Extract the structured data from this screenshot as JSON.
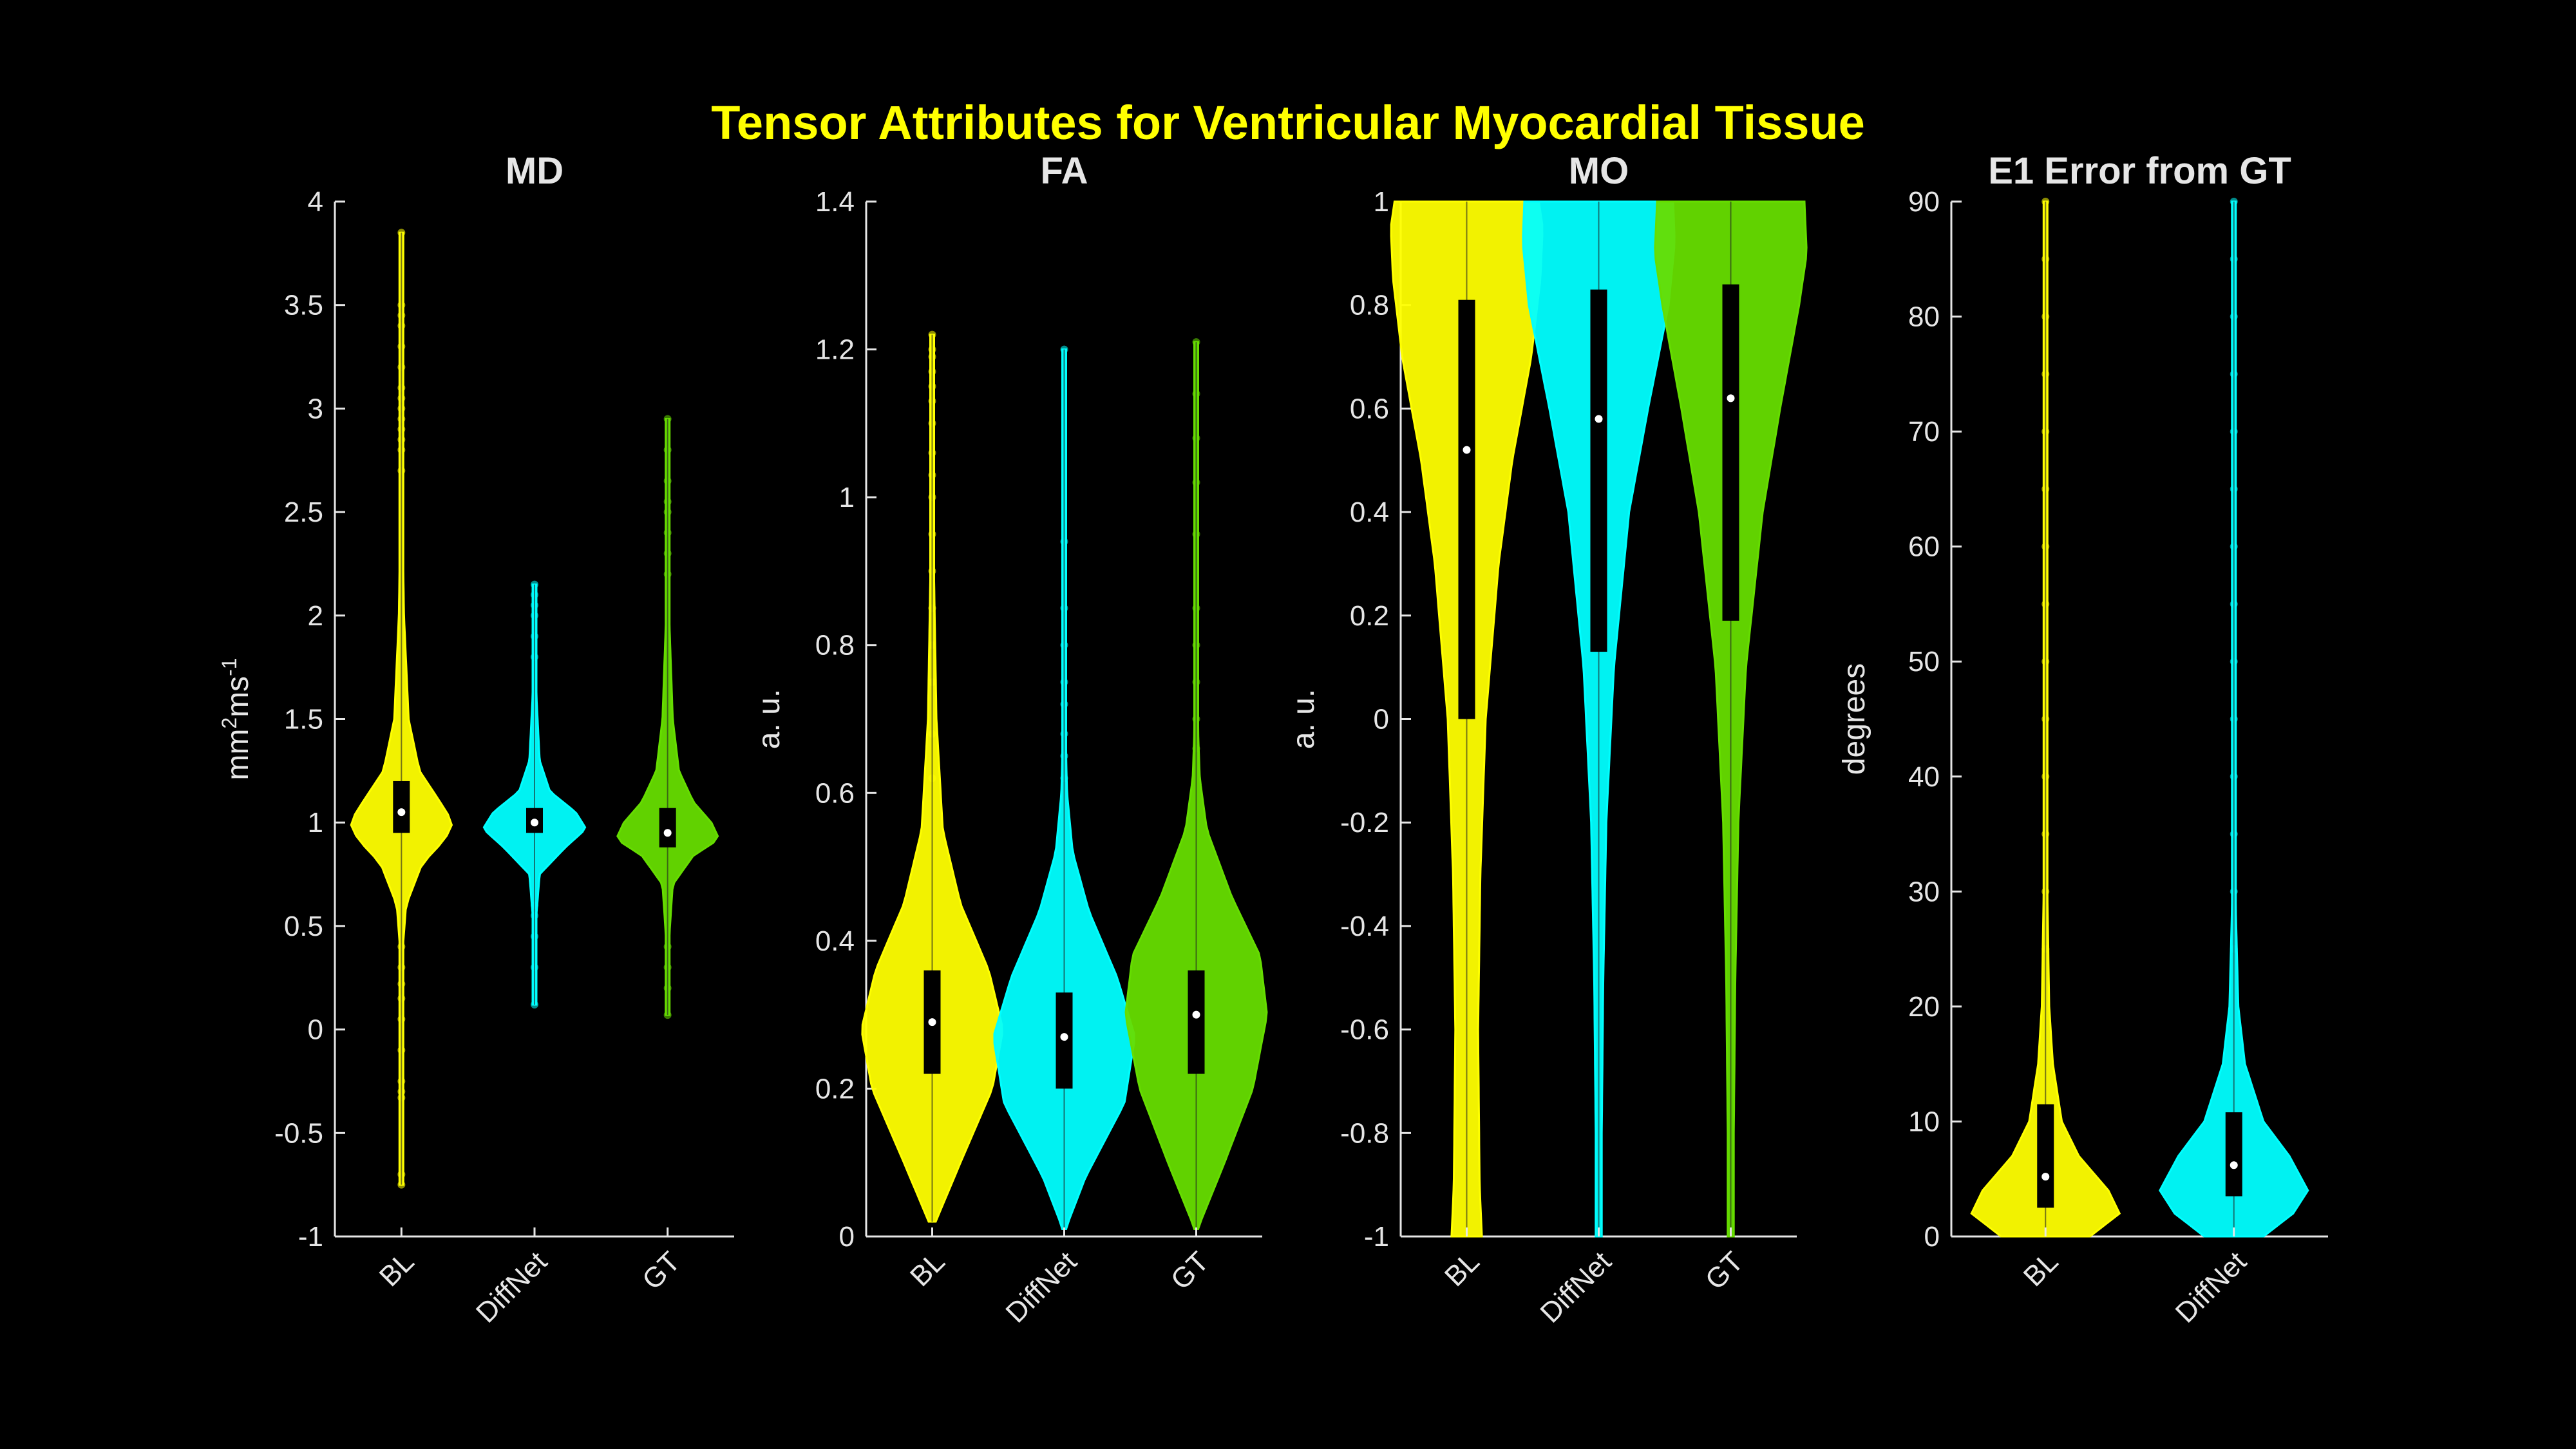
{
  "title": "Tensor Attributes for Ventricular Myocardial Tissue",
  "colors": {
    "background": "#000000",
    "title": "#ffff00",
    "axis": "#e6e6e6",
    "BL": "#ffff00",
    "DiffNet": "#00ffff",
    "GT": "#66dd00",
    "box": "#000000",
    "median_dot": "#ffffff"
  },
  "chart_data": [
    {
      "type": "violin",
      "title": "MD",
      "xlabel": "",
      "ylabel": "mm²ms⁻¹",
      "ylabel_parts": {
        "base": "mm",
        "sup1": "2",
        "mid": "ms",
        "sup2": "-1"
      },
      "ylim": [
        -1,
        4
      ],
      "yticks": [
        -1,
        -0.5,
        0,
        0.5,
        1,
        1.5,
        2,
        2.5,
        3,
        3.5,
        4
      ],
      "ytick_labels": [
        "-1",
        "-0.5",
        "0",
        "0.5",
        "1",
        "1.5",
        "2",
        "2.5",
        "3",
        "3.5",
        "4"
      ],
      "categories": [
        "BL",
        "DiffNet",
        "GT"
      ],
      "series": [
        {
          "name": "BL",
          "color": "#ffff00",
          "min": -0.75,
          "max": 3.85,
          "q1": 0.95,
          "median": 1.05,
          "q3": 1.2,
          "density": [
            [
              -0.75,
              0.002
            ],
            [
              0,
              0.01
            ],
            [
              0.4,
              0.03
            ],
            [
              0.6,
              0.09
            ],
            [
              0.8,
              0.4
            ],
            [
              0.92,
              0.85
            ],
            [
              1.0,
              1.0
            ],
            [
              1.1,
              0.75
            ],
            [
              1.25,
              0.35
            ],
            [
              1.5,
              0.14
            ],
            [
              2.0,
              0.05
            ],
            [
              2.5,
              0.02
            ],
            [
              3.0,
              0.008
            ],
            [
              3.85,
              0.002
            ]
          ],
          "outliers": [
            -0.75,
            -0.7,
            -0.33,
            -0.3,
            -0.25,
            -0.1,
            0.05,
            0.15,
            0.22,
            0.3,
            0.4,
            2.7,
            2.8,
            2.85,
            2.9,
            2.95,
            3.0,
            3.05,
            3.1,
            3.2,
            3.3,
            3.4,
            3.45,
            3.5,
            3.85
          ]
        },
        {
          "name": "DiffNet",
          "color": "#00ffff",
          "min": 0.12,
          "max": 2.15,
          "q1": 0.95,
          "median": 1.0,
          "q3": 1.07,
          "density": [
            [
              0.12,
              0.002
            ],
            [
              0.5,
              0.02
            ],
            [
              0.75,
              0.1
            ],
            [
              0.88,
              0.6
            ],
            [
              0.97,
              1.0
            ],
            [
              1.05,
              0.8
            ],
            [
              1.15,
              0.3
            ],
            [
              1.3,
              0.1
            ],
            [
              1.6,
              0.04
            ],
            [
              1.9,
              0.02
            ],
            [
              2.15,
              0.002
            ]
          ],
          "outliers": [
            0.12,
            0.3,
            0.45,
            0.55,
            0.6,
            1.8,
            1.9,
            2.0,
            2.05,
            2.1,
            2.15
          ]
        },
        {
          "name": "GT",
          "color": "#66dd00",
          "min": 0.07,
          "max": 2.95,
          "q1": 0.88,
          "median": 0.95,
          "q3": 1.07,
          "density": [
            [
              0.07,
              0.002
            ],
            [
              0.4,
              0.02
            ],
            [
              0.7,
              0.1
            ],
            [
              0.84,
              0.5
            ],
            [
              0.92,
              1.0
            ],
            [
              1.0,
              0.85
            ],
            [
              1.1,
              0.5
            ],
            [
              1.25,
              0.22
            ],
            [
              1.5,
              0.1
            ],
            [
              2.0,
              0.03
            ],
            [
              2.5,
              0.01
            ],
            [
              2.95,
              0.002
            ]
          ],
          "outliers": [
            0.07,
            0.2,
            0.3,
            0.4,
            2.2,
            2.3,
            2.4,
            2.5,
            2.55,
            2.65,
            2.8,
            2.95
          ]
        }
      ]
    },
    {
      "type": "violin",
      "title": "FA",
      "xlabel": "",
      "ylabel": "a. u.",
      "ylim": [
        0,
        1.4
      ],
      "yticks": [
        0,
        0.2,
        0.4,
        0.6,
        0.8,
        1,
        1.2,
        1.4
      ],
      "ytick_labels": [
        "0",
        "0.2",
        "0.4",
        "0.6",
        "0.8",
        "1",
        "1.2",
        "1.4"
      ],
      "categories": [
        "BL",
        "DiffNet",
        "GT"
      ],
      "series": [
        {
          "name": "BL",
          "color": "#ffff00",
          "min": 0.02,
          "max": 1.22,
          "q1": 0.22,
          "median": 0.29,
          "q3": 0.36,
          "density": [
            [
              0.02,
              0.05
            ],
            [
              0.1,
              0.4
            ],
            [
              0.2,
              0.85
            ],
            [
              0.28,
              1.0
            ],
            [
              0.36,
              0.8
            ],
            [
              0.45,
              0.4
            ],
            [
              0.55,
              0.15
            ],
            [
              0.7,
              0.06
            ],
            [
              0.9,
              0.025
            ],
            [
              1.1,
              0.012
            ],
            [
              1.22,
              0.004
            ]
          ],
          "outliers": [
            0.62,
            0.68,
            0.75,
            0.8,
            0.85,
            0.9,
            0.95,
            1.0,
            1.03,
            1.06,
            1.1,
            1.13,
            1.15,
            1.17,
            1.19,
            1.2,
            1.22
          ]
        },
        {
          "name": "DiffNet",
          "color": "#00ffff",
          "min": 0.01,
          "max": 1.2,
          "q1": 0.2,
          "median": 0.27,
          "q3": 0.33,
          "density": [
            [
              0.01,
              0.02
            ],
            [
              0.08,
              0.3
            ],
            [
              0.18,
              0.85
            ],
            [
              0.27,
              1.0
            ],
            [
              0.35,
              0.75
            ],
            [
              0.44,
              0.35
            ],
            [
              0.52,
              0.12
            ],
            [
              0.6,
              0.04
            ],
            [
              0.7,
              0.015
            ],
            [
              0.9,
              0.006
            ],
            [
              1.2,
              0.002
            ]
          ],
          "outliers": [
            0.62,
            0.65,
            0.68,
            0.72,
            0.75,
            0.8,
            0.85,
            0.94,
            1.2
          ]
        },
        {
          "name": "GT",
          "color": "#66dd00",
          "min": 0.01,
          "max": 1.21,
          "q1": 0.22,
          "median": 0.3,
          "q3": 0.36,
          "density": [
            [
              0.01,
              0.02
            ],
            [
              0.1,
              0.4
            ],
            [
              0.2,
              0.8
            ],
            [
              0.3,
              1.0
            ],
            [
              0.38,
              0.9
            ],
            [
              0.46,
              0.5
            ],
            [
              0.55,
              0.15
            ],
            [
              0.62,
              0.05
            ],
            [
              0.7,
              0.02
            ],
            [
              0.9,
              0.008
            ],
            [
              1.21,
              0.002
            ]
          ],
          "outliers": [
            0.66,
            0.7,
            0.75,
            0.8,
            0.85,
            0.95,
            1.02,
            1.08,
            1.14,
            1.21
          ]
        }
      ]
    },
    {
      "type": "violin",
      "title": "MO",
      "xlabel": "",
      "ylabel": "a. u.",
      "ylim": [
        -1,
        1
      ],
      "yticks": [
        -1,
        -0.8,
        -0.6,
        -0.4,
        -0.2,
        0,
        0.2,
        0.4,
        0.6,
        0.8,
        1
      ],
      "ytick_labels": [
        "-1",
        "-0.8",
        "-0.6",
        "-0.4",
        "-0.2",
        "0",
        "0.2",
        "0.4",
        "0.6",
        "0.8",
        "1"
      ],
      "categories": [
        "BL",
        "DiffNet",
        "GT"
      ],
      "series": [
        {
          "name": "BL",
          "color": "#ffff00",
          "min": -1,
          "max": 1,
          "q1": 0.0,
          "median": 0.52,
          "q3": 0.81,
          "density": [
            [
              -1,
              0.2
            ],
            [
              -0.9,
              0.17
            ],
            [
              -0.6,
              0.15
            ],
            [
              -0.3,
              0.18
            ],
            [
              0,
              0.25
            ],
            [
              0.3,
              0.42
            ],
            [
              0.5,
              0.6
            ],
            [
              0.7,
              0.85
            ],
            [
              0.85,
              0.97
            ],
            [
              0.95,
              1.0
            ],
            [
              1,
              0.95
            ]
          ],
          "outliers": []
        },
        {
          "name": "DiffNet",
          "color": "#00ffff",
          "min": -1,
          "max": 1,
          "q1": 0.13,
          "median": 0.58,
          "q3": 0.83,
          "density": [
            [
              -1,
              0.04
            ],
            [
              -0.8,
              0.04
            ],
            [
              -0.5,
              0.06
            ],
            [
              -0.2,
              0.1
            ],
            [
              0.1,
              0.2
            ],
            [
              0.4,
              0.4
            ],
            [
              0.6,
              0.65
            ],
            [
              0.8,
              0.92
            ],
            [
              0.92,
              1.0
            ],
            [
              1,
              0.98
            ]
          ],
          "outliers": []
        },
        {
          "name": "GT",
          "color": "#66dd00",
          "min": -1,
          "max": 1,
          "q1": 0.19,
          "median": 0.62,
          "q3": 0.84,
          "density": [
            [
              -1,
              0.04
            ],
            [
              -0.8,
              0.04
            ],
            [
              -0.5,
              0.06
            ],
            [
              -0.2,
              0.1
            ],
            [
              0.1,
              0.2
            ],
            [
              0.4,
              0.42
            ],
            [
              0.6,
              0.65
            ],
            [
              0.8,
              0.9
            ],
            [
              0.9,
              1.0
            ],
            [
              1,
              0.97
            ]
          ],
          "outliers": []
        }
      ]
    },
    {
      "type": "violin",
      "title": "E1 Error from GT",
      "xlabel": "",
      "ylabel": "degrees",
      "ylim": [
        0,
        90
      ],
      "yticks": [
        0,
        10,
        20,
        30,
        40,
        50,
        60,
        70,
        80,
        90
      ],
      "ytick_labels": [
        "0",
        "10",
        "20",
        "30",
        "40",
        "50",
        "60",
        "70",
        "80",
        "90"
      ],
      "categories": [
        "BL",
        "DiffNet"
      ],
      "series": [
        {
          "name": "BL",
          "color": "#ffff00",
          "min": 0,
          "max": 90,
          "q1": 2.5,
          "median": 5.2,
          "q3": 11.5,
          "density": [
            [
              0,
              0.6
            ],
            [
              2,
              1.0
            ],
            [
              4,
              0.85
            ],
            [
              7,
              0.45
            ],
            [
              10,
              0.22
            ],
            [
              15,
              0.1
            ],
            [
              20,
              0.05
            ],
            [
              30,
              0.025
            ],
            [
              50,
              0.015
            ],
            [
              70,
              0.012
            ],
            [
              90,
              0.012
            ]
          ],
          "outliers": [
            25,
            30,
            35,
            40,
            45,
            50,
            55,
            60,
            65,
            70,
            75,
            80,
            85,
            90
          ]
        },
        {
          "name": "DiffNet",
          "color": "#00ffff",
          "min": 0,
          "max": 90,
          "q1": 3.5,
          "median": 6.2,
          "q3": 10.8,
          "density": [
            [
              0,
              0.4
            ],
            [
              2,
              0.8
            ],
            [
              4,
              1.0
            ],
            [
              7,
              0.75
            ],
            [
              10,
              0.4
            ],
            [
              15,
              0.15
            ],
            [
              20,
              0.06
            ],
            [
              30,
              0.02
            ],
            [
              50,
              0.012
            ],
            [
              70,
              0.01
            ],
            [
              90,
              0.01
            ]
          ],
          "outliers": [
            25,
            30,
            35,
            40,
            45,
            50,
            55,
            60,
            65,
            70,
            75,
            80,
            85,
            90
          ]
        }
      ]
    }
  ]
}
